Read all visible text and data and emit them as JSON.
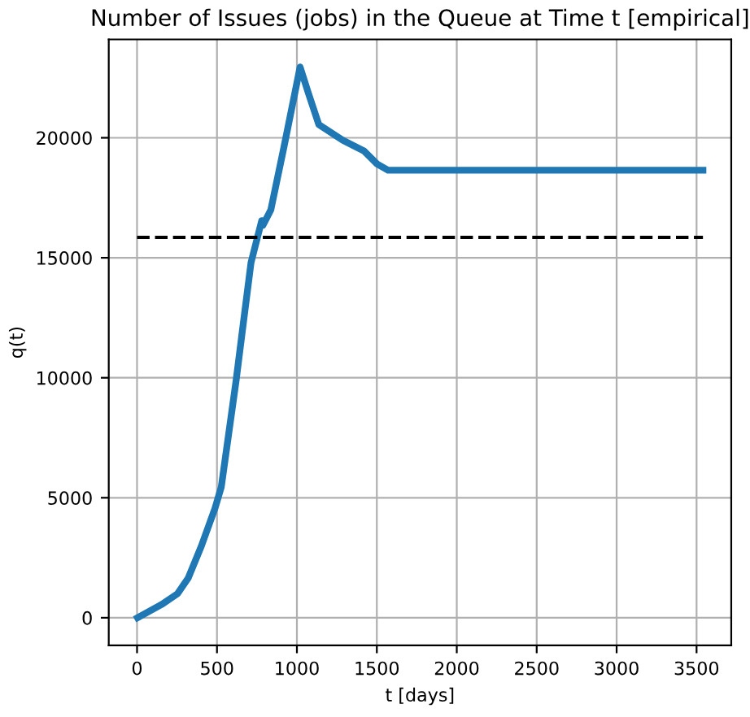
{
  "chart_data": {
    "type": "line",
    "title": "Number of Issues (jobs) in the Queue at Time t [empirical]",
    "xlabel": "t [days]",
    "ylabel": "q(t)",
    "series": [
      {
        "color": "#1f77b4",
        "x": [
          3,
          153,
          253,
          320,
          403,
          487,
          527,
          620,
          670,
          713,
          780,
          787,
          837,
          920,
          1020,
          1070,
          1137,
          1287,
          1420,
          1503,
          1570,
          3540
        ],
        "values": [
          0,
          550,
          1000,
          1650,
          3000,
          4550,
          5450,
          9900,
          12550,
          14800,
          16550,
          16350,
          17000,
          19650,
          22950,
          21900,
          20550,
          19900,
          19450,
          18900,
          18650,
          18650
        ]
      },
      {
        "color": "#000000",
        "line_style": "dashed",
        "x": [
          0,
          3540
        ],
        "values": [
          15850,
          15850
        ]
      }
    ],
    "xlim": [
      -177,
      3717
    ],
    "ylim": [
      -1148,
      24098
    ],
    "xticks": [
      0,
      500,
      1000,
      1500,
      2000,
      2500,
      3000,
      3500
    ],
    "yticks": [
      0,
      5000,
      10000,
      15000,
      20000
    ],
    "grid": true
  }
}
